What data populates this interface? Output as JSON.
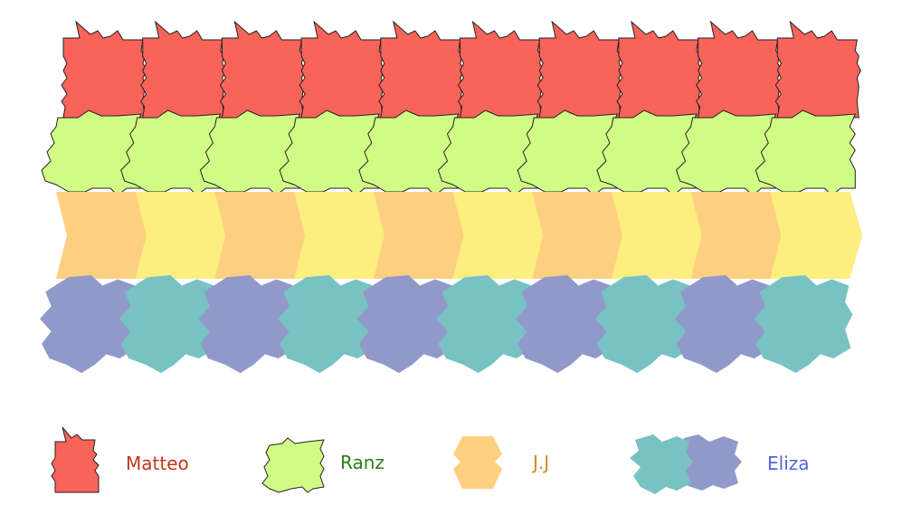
{
  "colors": {
    "background": "#ffffff",
    "red": "#f8635a",
    "green": "#d0fb85",
    "orange": "#fdcf81",
    "yellow": "#fdee80",
    "purple": "#9099c9",
    "teal": "#78c2c3",
    "outline": "#222222"
  },
  "rows": [
    {
      "name": "row-red",
      "count": 10,
      "icon": "star-tile",
      "fill": "#f8635a"
    },
    {
      "name": "row-green",
      "count": 10,
      "icon": "blob-tile",
      "fill": "#d0fb85"
    },
    {
      "name": "row-orange-yellow",
      "count": 10,
      "icon": "hex-arrow-tile",
      "fills": [
        "#fdcf81",
        "#fdee80"
      ]
    },
    {
      "name": "row-purple-teal",
      "count": 10,
      "icon": "puzzle-tile",
      "fills": [
        "#9099c9",
        "#78c2c3"
      ]
    }
  ],
  "legend": [
    {
      "label": "Matteo",
      "label_color": "#c0391b",
      "icon": "red-star-tile-icon"
    },
    {
      "label": "Ranz",
      "label_color": "#2e7d12",
      "icon": "green-blob-tile-icon"
    },
    {
      "label": "J.J",
      "label_color": "#d18a1e",
      "icon": "orange-hex-tile-icon"
    },
    {
      "label": "Eliza",
      "label_color": "#5562d6",
      "icon": "teal-purple-tile-icon"
    }
  ]
}
